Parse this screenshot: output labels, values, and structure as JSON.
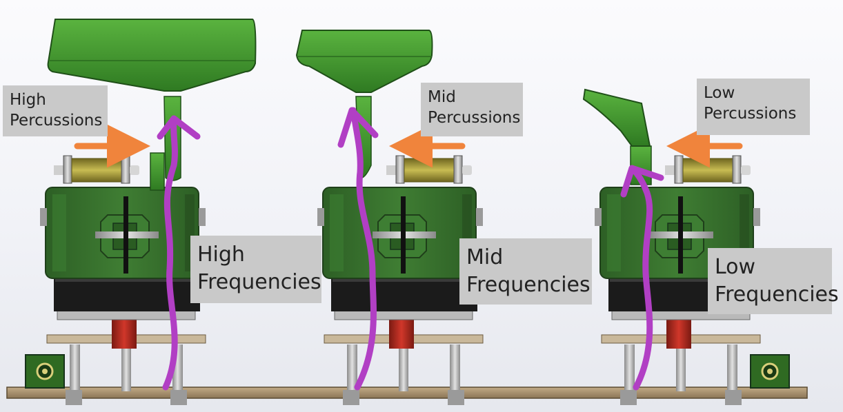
{
  "labels": {
    "high_percussions": "High\nPercussions",
    "mid_percussions": "Mid\nPercussions",
    "low_percussions": "Low\nPercussions",
    "high_frequencies": "High\nFrequencies",
    "mid_frequencies": "Mid\nFrequencies",
    "low_frequencies": "Low\nFrequencies"
  },
  "colors": {
    "part_green": "#3f8f2a",
    "part_green_light": "#5ab33f",
    "housing_green": "#356f2c",
    "arrow_purple": "#b13fc4",
    "percussion_arrow_orange": "#f0843c",
    "label_bg": "#c9c9c9",
    "base_plank": "#a08a6a",
    "red_damper": "#b0261c",
    "solenoid_gold": "#a89a2e"
  }
}
